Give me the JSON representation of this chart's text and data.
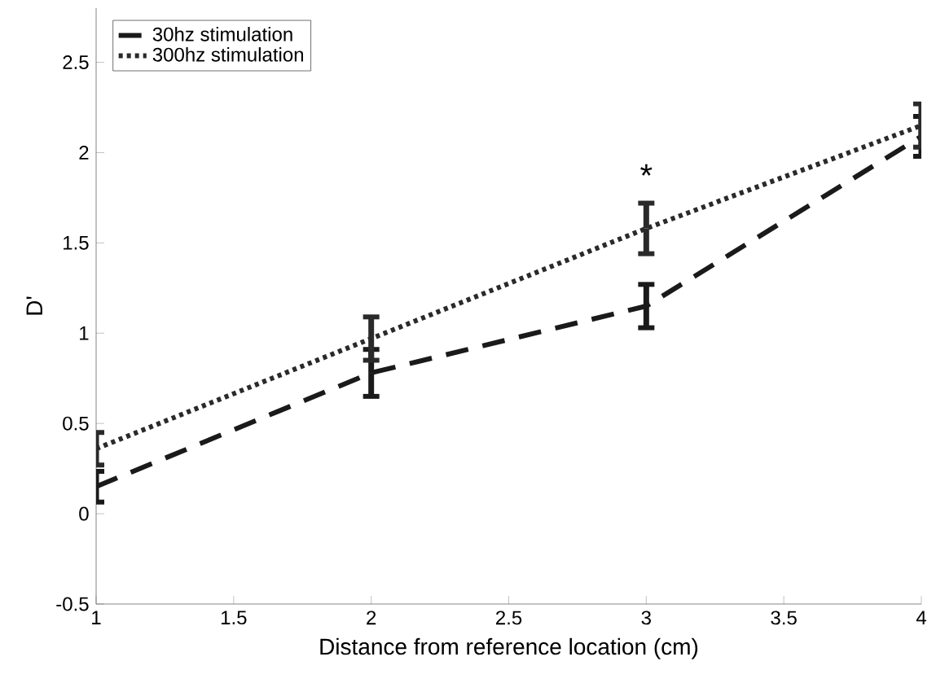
{
  "chart_data": {
    "type": "line",
    "xlabel": "Distance from reference location (cm)",
    "ylabel": "D'",
    "x": [
      1,
      2,
      3,
      4
    ],
    "xlim": [
      1,
      4
    ],
    "ylim": [
      -0.5,
      2.8
    ],
    "xticks": [
      1,
      1.5,
      2,
      2.5,
      3,
      3.5,
      4
    ],
    "yticks": [
      -0.5,
      0,
      0.5,
      1,
      1.5,
      2,
      2.5
    ],
    "legend": "top left",
    "marker": "none",
    "grid": false,
    "series": [
      {
        "name": "30hz stimulation",
        "color": "#1a1a1a",
        "line_style": "dashed",
        "values": [
          0.15,
          0.78,
          1.15,
          2.09
        ],
        "errors": [
          0.085,
          0.13,
          0.12,
          0.11
        ]
      },
      {
        "name": "300hz stimulation",
        "color": "#2a2a2a",
        "line_style": "dotted",
        "values": [
          0.36,
          0.97,
          1.58,
          2.15
        ],
        "errors": [
          0.09,
          0.12,
          0.14,
          0.12
        ]
      }
    ],
    "annotations": [
      {
        "text": "*",
        "x": 3,
        "y": 1.72
      }
    ]
  }
}
